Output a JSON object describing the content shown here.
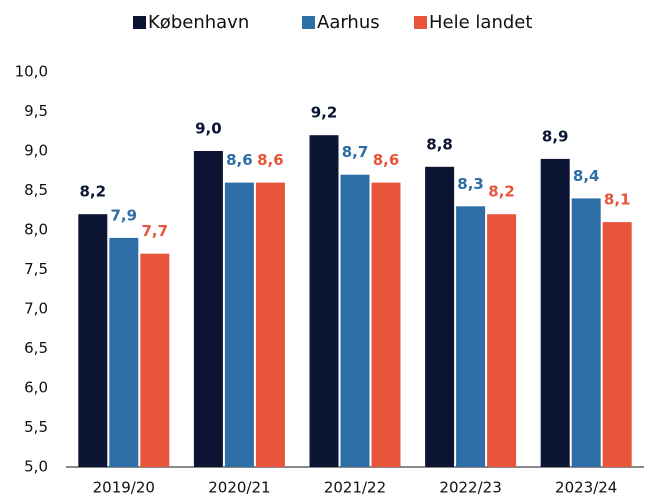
{
  "chart_data": {
    "type": "bar",
    "categories": [
      "2019/20",
      "2020/21",
      "2021/22",
      "2022/23",
      "2023/24"
    ],
    "series": [
      {
        "name": "København",
        "color": "#0b1533",
        "values": [
          8.2,
          9.0,
          9.2,
          8.8,
          8.9
        ],
        "value_labels": [
          "8,2",
          "9,0",
          "9,2",
          "8,8",
          "8,9"
        ]
      },
      {
        "name": "Aarhus",
        "color": "#2e6ea6",
        "values": [
          7.9,
          8.6,
          8.7,
          8.3,
          8.4
        ],
        "value_labels": [
          "7,9",
          "8,6",
          "8,7",
          "8,3",
          "8,4"
        ]
      },
      {
        "name": "Hele landet",
        "color": "#e9553b",
        "values": [
          7.7,
          8.6,
          8.6,
          8.2,
          8.1
        ],
        "value_labels": [
          "7,7",
          "8,6",
          "8,6",
          "8,2",
          "8,1"
        ]
      }
    ],
    "ylim": [
      5,
      10
    ],
    "yticks": [
      {
        "value": 5,
        "label": "5,0"
      },
      {
        "value": 5.5,
        "label": "5,5"
      },
      {
        "value": 6,
        "label": "6,0"
      },
      {
        "value": 6.5,
        "label": "6,5"
      },
      {
        "value": 7,
        "label": "7,0"
      },
      {
        "value": 7.5,
        "label": "7,5"
      },
      {
        "value": 8,
        "label": "8,0"
      },
      {
        "value": 8.5,
        "label": "8,5"
      },
      {
        "value": 9,
        "label": "9,0"
      },
      {
        "value": 9.5,
        "label": "9,5"
      },
      {
        "value": 10,
        "label": "10,0"
      }
    ],
    "grid": false,
    "legend": "top"
  }
}
